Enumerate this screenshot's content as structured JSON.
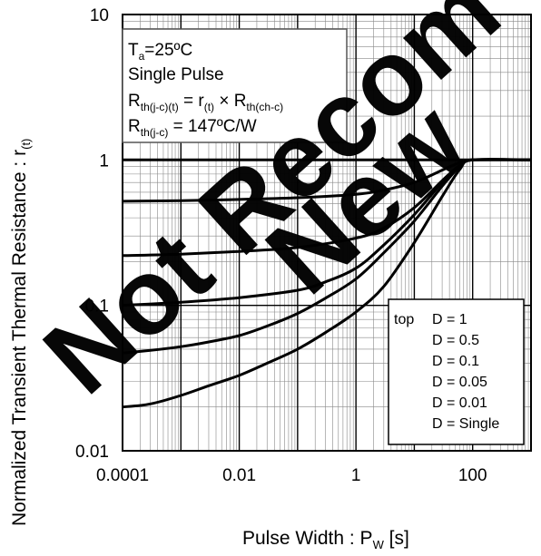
{
  "chart_data": {
    "type": "line",
    "x_scale": "log",
    "y_scale": "log",
    "xlim": [
      0.0001,
      1000
    ],
    "ylim": [
      0.01,
      10
    ],
    "xlabel": {
      "main": "Pulse Width : P",
      "sub": "W",
      "unit": " [s]"
    },
    "ylabel": {
      "main": "Normalized Transient Thermal Resistance : r",
      "sub": "(t)"
    },
    "x_ticks": [
      {
        "value": 0.0001,
        "label": "0.0001"
      },
      {
        "value": 0.01,
        "label": "0.01"
      },
      {
        "value": 1,
        "label": "1"
      },
      {
        "value": 100,
        "label": "100"
      }
    ],
    "y_ticks": [
      {
        "value": 0.01,
        "label": "0.01"
      },
      {
        "value": 0.1,
        "label": "0.1"
      },
      {
        "value": 1,
        "label": "1"
      },
      {
        "value": 10,
        "label": "10"
      }
    ],
    "grid": true,
    "conditions_box": {
      "line1": {
        "a": "T",
        "a_sub": "a",
        "b": "=25ºC"
      },
      "line2": {
        "a": "Single Pulse"
      },
      "line3": {
        "a": "R",
        "a_sub": "th(j-c)(t)",
        "b": " = r",
        "b_sub": "(t)",
        "c": " × R",
        "c_sub": "th(ch-c)"
      },
      "line4": {
        "a": "R",
        "a_sub": "th(j-c)",
        "b": " = 147ºC/W"
      }
    },
    "legend": {
      "position": "bottom-right",
      "prefix": "top",
      "entries": [
        "D = 1",
        "D = 0.5",
        "D = 0.1",
        "D = 0.05",
        "D = 0.01",
        "D = Single"
      ]
    },
    "series": [
      {
        "name": "D = 1",
        "x": [
          0.0001,
          1000
        ],
        "y": [
          1,
          1
        ]
      },
      {
        "name": "D = 0.5",
        "x": [
          0.0001,
          0.001,
          0.01,
          0.1,
          1,
          3,
          10,
          30,
          60,
          100,
          1000
        ],
        "y": [
          0.52,
          0.525,
          0.535,
          0.55,
          0.58,
          0.62,
          0.7,
          0.85,
          0.96,
          1,
          1
        ]
      },
      {
        "name": "D = 0.1",
        "x": [
          0.0001,
          0.001,
          0.01,
          0.1,
          1,
          3,
          10,
          30,
          60,
          100,
          1000
        ],
        "y": [
          0.22,
          0.225,
          0.235,
          0.25,
          0.29,
          0.34,
          0.47,
          0.72,
          0.92,
          1,
          1
        ]
      },
      {
        "name": "D = 0.05",
        "x": [
          0.0001,
          0.001,
          0.01,
          0.1,
          0.3,
          1,
          3,
          10,
          30,
          60,
          100,
          1000
        ],
        "y": [
          0.1,
          0.105,
          0.113,
          0.127,
          0.145,
          0.18,
          0.26,
          0.42,
          0.7,
          0.92,
          1,
          1
        ]
      },
      {
        "name": "D = 0.01",
        "x": [
          0.0001,
          0.0003,
          0.001,
          0.003,
          0.01,
          0.03,
          0.1,
          0.3,
          1,
          3,
          10,
          30,
          60,
          100,
          1000
        ],
        "y": [
          0.047,
          0.049,
          0.052,
          0.056,
          0.062,
          0.072,
          0.088,
          0.112,
          0.152,
          0.23,
          0.38,
          0.66,
          0.9,
          1,
          1
        ]
      },
      {
        "name": "D = Single",
        "x": [
          0.0001,
          0.0003,
          0.001,
          0.003,
          0.01,
          0.03,
          0.1,
          0.3,
          1,
          3,
          10,
          30,
          60,
          100,
          1000
        ],
        "y": [
          0.02,
          0.021,
          0.024,
          0.028,
          0.033,
          0.04,
          0.05,
          0.065,
          0.09,
          0.135,
          0.27,
          0.56,
          0.86,
          1,
          1
        ]
      }
    ],
    "watermark": {
      "line1": "Not Recom",
      "line2": "New"
    }
  }
}
